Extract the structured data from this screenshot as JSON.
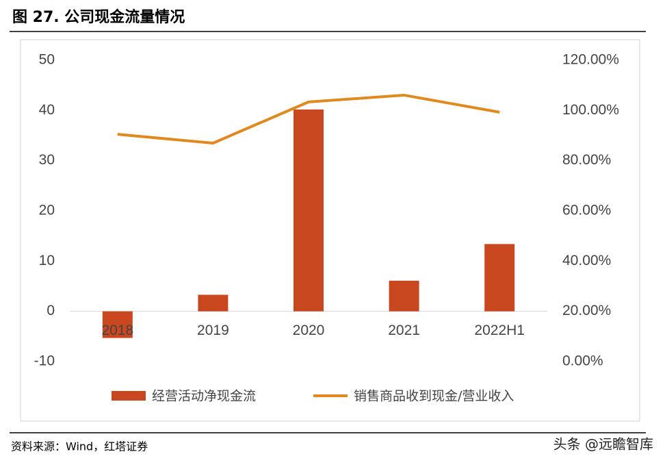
{
  "header": {
    "title": "图 27. 公司现金流量情况"
  },
  "chart_data": {
    "type": "combo",
    "categories": [
      "2018",
      "2019",
      "2020",
      "2021",
      "2022H1"
    ],
    "series": [
      {
        "name": "经营活动净现金流",
        "type": "bar",
        "color": "#c8471f",
        "values": [
          -5.3,
          3.3,
          40.2,
          6.1,
          13.4
        ]
      },
      {
        "name": "销售商品收到现金/营业收入",
        "type": "line",
        "axis": "y2",
        "color": "#e0891e",
        "values": [
          90.5,
          87.0,
          103.4,
          106.1,
          99.3
        ]
      }
    ],
    "ylim": [
      -10,
      50
    ],
    "yticks": [
      -10,
      0,
      10,
      20,
      30,
      40,
      50
    ],
    "y2lim": [
      0,
      120
    ],
    "y2ticks": [
      {
        "value": 0,
        "label": "0.00%"
      },
      {
        "value": 20,
        "label": "20.00%"
      },
      {
        "value": 40,
        "label": "40.00%"
      },
      {
        "value": 60,
        "label": "60.00%"
      },
      {
        "value": 80,
        "label": "80.00%"
      },
      {
        "value": 100,
        "label": "100.00%"
      },
      {
        "value": 120,
        "label": "120.00%"
      }
    ],
    "grid": false,
    "legend": "bottom"
  },
  "footer": {
    "source": "资料来源：Wind，红塔证券",
    "watermark": "头条 @远瞻智库"
  }
}
